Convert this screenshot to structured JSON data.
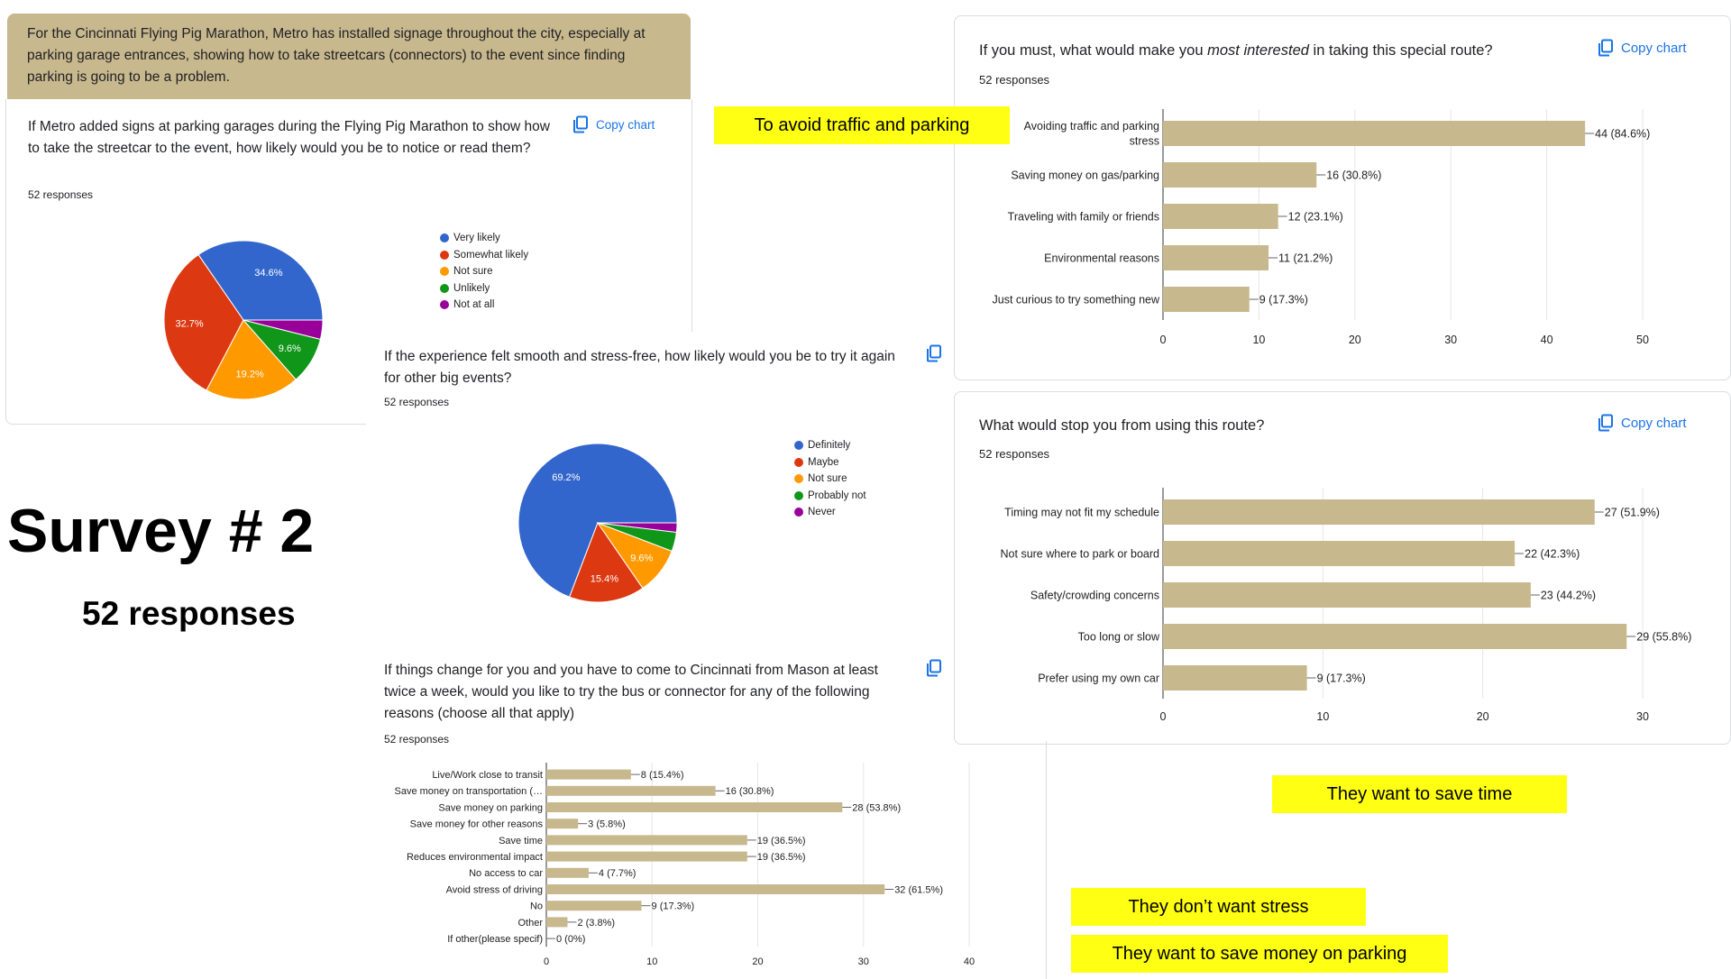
{
  "page": {
    "title": "Survey # 2",
    "subtitle": "52 responses",
    "copy_chart_label": "Copy chart",
    "intro_text": "For the Cincinnati Flying Pig Marathon, Metro has installed signage throughout the city, especially at parking garage entrances, showing how to take streetcars (connectors) to the event since finding parking is going to be a problem."
  },
  "callouts": {
    "traffic": "To avoid traffic and parking",
    "time": "They want to save time",
    "stress": "They don’t want stress",
    "money": "They want to save money on parking"
  },
  "colors": {
    "bar": "#c8b88e",
    "accent": "#1a73e8",
    "callout": "#ffff14"
  },
  "chart_data": [
    {
      "type": "pie",
      "title": "If Metro added signs at parking garages during the Flying Pig Marathon to show how to take the streetcar to the event, how likely would you be to notice or read them?",
      "responses": "52 responses",
      "labels": [
        "Very likely",
        "Somewhat likely",
        "Not sure",
        "Unlikely",
        "Not at all"
      ],
      "values": [
        34.6,
        32.7,
        19.2,
        9.6,
        3.9
      ],
      "value_labels": [
        "34.6%",
        "32.7%",
        "19.2%",
        "9.6%",
        ""
      ],
      "colors": [
        "#3366cc",
        "#dc3912",
        "#ff9900",
        "#109618",
        "#990099"
      ]
    },
    {
      "type": "pie",
      "title": "If the experience felt smooth and stress-free, how likely would you be to try it again for other big events?",
      "responses": "52 responses",
      "labels": [
        "Definitely",
        "Maybe",
        "Not sure",
        "Probably not",
        "Never"
      ],
      "values": [
        69.2,
        15.4,
        9.6,
        3.9,
        1.9
      ],
      "value_labels": [
        "69.2%",
        "15.4%",
        "9.6%",
        "",
        ""
      ],
      "colors": [
        "#3366cc",
        "#dc3912",
        "#ff9900",
        "#109618",
        "#990099"
      ]
    },
    {
      "type": "bar",
      "orientation": "horizontal",
      "title_pre": "If you must, what would make you ",
      "title_em": "most interested",
      "title_post": " in taking this special route?",
      "responses": "52 responses",
      "categories": [
        "Avoiding traffic and parking stress",
        "Saving money on gas/parking",
        "Traveling with family or friends",
        "Environmental reasons",
        "Just curious to try something new"
      ],
      "values": [
        44,
        16,
        12,
        11,
        9
      ],
      "value_labels": [
        "44 (84.6%)",
        "16 (30.8%)",
        "12 (23.1%)",
        "11 (21.2%)",
        "9 (17.3%)"
      ],
      "xlim": [
        0,
        50
      ],
      "ticks": [
        0,
        10,
        20,
        30,
        40,
        50
      ]
    },
    {
      "type": "bar",
      "orientation": "horizontal",
      "title": "What would stop you from using this route?",
      "responses": "52 responses",
      "categories": [
        "Timing may not fit my schedule",
        "Not sure where to park or board",
        "Safety/crowding concerns",
        "Too long or slow",
        "Prefer using my own car"
      ],
      "values": [
        27,
        22,
        23,
        29,
        9
      ],
      "value_labels": [
        "27 (51.9%)",
        "22 (42.3%)",
        "23 (44.2%)",
        "29 (55.8%)",
        "9 (17.3%)"
      ],
      "xlim": [
        0,
        30
      ],
      "ticks": [
        0,
        10,
        20,
        30
      ]
    },
    {
      "type": "bar",
      "orientation": "horizontal",
      "title": "If things change for you and you have to come to Cincinnati from Mason at least twice a week, would you like to try the bus or connector for any of the following reasons (choose all that apply)",
      "responses": "52 responses",
      "categories": [
        "Live/Work close to transit",
        "Save money on transportation (…",
        "Save money on parking",
        "Save money for other reasons",
        "Save time",
        "Reduces environmental impact",
        "No access to car",
        "Avoid stress of driving",
        "No",
        "Other",
        "If other(please specif)"
      ],
      "values": [
        8,
        16,
        28,
        3,
        19,
        19,
        4,
        32,
        9,
        2,
        0
      ],
      "value_labels": [
        "8 (15.4%)",
        "16 (30.8%)",
        "28 (53.8%)",
        "3 (5.8%)",
        "19 (36.5%)",
        "19 (36.5%)",
        "4 (7.7%)",
        "32 (61.5%)",
        "9 (17.3%)",
        "2 (3.8%)",
        "0 (0%)"
      ],
      "xlim": [
        0,
        40
      ],
      "ticks": [
        0,
        10,
        20,
        30,
        40
      ]
    }
  ]
}
